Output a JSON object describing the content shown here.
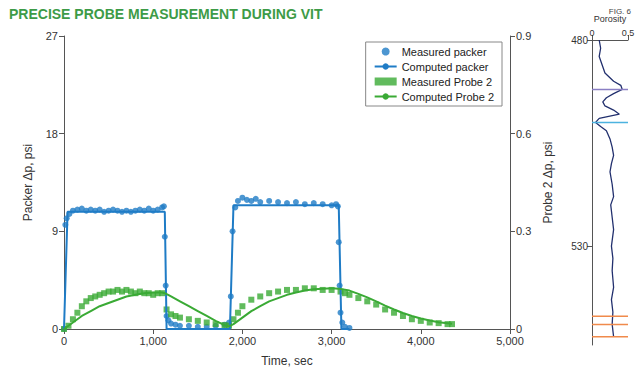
{
  "chart_data": [
    {
      "type": "line",
      "title": "PRECISE PROBE MEASUREMENT DURING VIT",
      "subtitle": "FIG. 6",
      "xlabel": "Time, sec",
      "ylabel": "Packer Δp, psi",
      "y2label": "Probe 2 Δp, psi",
      "xlim": [
        0,
        5000
      ],
      "xticks": [
        0,
        {
          "value": 1000,
          "label": "1,000"
        },
        {
          "value": 2000,
          "label": "2,000"
        },
        {
          "value": 3000,
          "label": "3,000"
        },
        {
          "value": 4000,
          "label": "4,000"
        },
        {
          "value": 5000,
          "label": "5,000"
        }
      ],
      "ylim": [
        0,
        27
      ],
      "yticks": [
        0,
        9,
        18,
        27
      ],
      "y2lim": [
        0,
        0.9
      ],
      "y2ticks": [
        0,
        0.3,
        0.6,
        0.9
      ],
      "grid": false,
      "legend": "upper right",
      "series": [
        {
          "name": "Measured packer",
          "type": "scatter",
          "marker": "circle",
          "color": "#1f7cc6",
          "x": [
            0,
            15,
            30,
            60,
            100,
            150,
            200,
            250,
            300,
            350,
            400,
            450,
            500,
            550,
            600,
            650,
            700,
            750,
            800,
            850,
            900,
            950,
            1000,
            1050,
            1100,
            1120,
            1130,
            1140,
            1150,
            1170,
            1200,
            1250,
            1300,
            1400,
            1500,
            1600,
            1700,
            1800,
            1850,
            1870,
            1890,
            1920,
            1950,
            2000,
            2050,
            2100,
            2150,
            2200,
            2300,
            2400,
            2500,
            2600,
            2700,
            2800,
            2900,
            3000,
            3050,
            3070,
            3080,
            3090,
            3100,
            3120,
            3150,
            3200
          ],
          "values": [
            0,
            9.6,
            10.2,
            10.6,
            10.9,
            11.0,
            11.1,
            10.9,
            11.0,
            10.9,
            11.0,
            10.8,
            10.9,
            11.0,
            10.9,
            10.8,
            10.9,
            10.8,
            10.9,
            11.0,
            10.9,
            11.1,
            10.9,
            11.0,
            11.2,
            11.3,
            8.5,
            4.0,
            1.2,
            0.8,
            0.5,
            0.4,
            0.3,
            0.3,
            0.2,
            0.2,
            0.3,
            0.4,
            0.6,
            3.0,
            9.0,
            11.2,
            11.8,
            12.1,
            11.9,
            11.8,
            12.0,
            11.7,
            11.8,
            11.7,
            11.6,
            11.7,
            11.5,
            11.6,
            11.5,
            11.4,
            11.5,
            11.3,
            8.0,
            4.0,
            1.5,
            0.6,
            0.2,
            0.1
          ]
        },
        {
          "name": "Computed packer",
          "type": "line",
          "line_style": "solid",
          "color": "#1f7cc6",
          "x": [
            0,
            40,
            1130,
            1150,
            1860,
            1900,
            3080,
            3110,
            3200
          ],
          "values": [
            0,
            10.8,
            10.8,
            0,
            0,
            11.4,
            11.4,
            0,
            0
          ]
        },
        {
          "name": "Measured Probe 2",
          "type": "scatter",
          "marker": "square",
          "color": "#3aaa35",
          "axis": "y2",
          "x": [
            0,
            50,
            100,
            150,
            200,
            250,
            300,
            350,
            400,
            450,
            500,
            550,
            600,
            650,
            700,
            750,
            800,
            850,
            900,
            950,
            1000,
            1050,
            1100,
            1150,
            1200,
            1250,
            1300,
            1400,
            1500,
            1600,
            1700,
            1800,
            1850,
            1900,
            1950,
            2000,
            2100,
            2200,
            2300,
            2400,
            2500,
            2600,
            2700,
            2800,
            2900,
            3000,
            3100,
            3150,
            3200,
            3300,
            3400,
            3500,
            3600,
            3700,
            3800,
            3900,
            4000,
            4100,
            4200,
            4300,
            4350
          ],
          "values": [
            0,
            0.01,
            0.03,
            0.05,
            0.07,
            0.085,
            0.095,
            0.1,
            0.105,
            0.11,
            0.115,
            0.115,
            0.12,
            0.115,
            0.12,
            0.115,
            0.11,
            0.115,
            0.11,
            0.11,
            0.105,
            0.11,
            0.11,
            0.06,
            0.045,
            0.04,
            0.035,
            0.03,
            0.025,
            0.02,
            0.015,
            0.012,
            0.01,
            0.03,
            0.05,
            0.07,
            0.09,
            0.1,
            0.11,
            0.115,
            0.12,
            0.12,
            0.125,
            0.125,
            0.12,
            0.12,
            0.115,
            0.11,
            0.105,
            0.095,
            0.085,
            0.075,
            0.06,
            0.05,
            0.04,
            0.03,
            0.025,
            0.02,
            0.018,
            0.015,
            0.015
          ]
        },
        {
          "name": "Computed Probe 2",
          "type": "line",
          "line_style": "solid",
          "color": "#3aaa35",
          "axis": "y2",
          "x": [
            0,
            100,
            200,
            300,
            400,
            500,
            600,
            700,
            800,
            900,
            1000,
            1100,
            1130,
            1200,
            1300,
            1400,
            1500,
            1600,
            1700,
            1800,
            1850,
            1900,
            2000,
            2100,
            2200,
            2300,
            2400,
            2500,
            2600,
            2700,
            2800,
            2900,
            3000,
            3080,
            3200,
            3300,
            3400,
            3500,
            3600,
            3700,
            3800,
            3900,
            4000,
            4100,
            4200,
            4350
          ],
          "values": [
            0,
            0.02,
            0.04,
            0.055,
            0.07,
            0.08,
            0.09,
            0.1,
            0.105,
            0.11,
            0.112,
            0.112,
            0.11,
            0.1,
            0.085,
            0.07,
            0.055,
            0.04,
            0.025,
            0.012,
            0.008,
            0.015,
            0.035,
            0.055,
            0.07,
            0.085,
            0.095,
            0.105,
            0.112,
            0.118,
            0.122,
            0.124,
            0.125,
            0.124,
            0.118,
            0.108,
            0.097,
            0.085,
            0.072,
            0.06,
            0.049,
            0.04,
            0.032,
            0.026,
            0.021,
            0.016
          ]
        }
      ]
    },
    {
      "type": "line",
      "xlabel": "Porosity",
      "xlim": [
        0,
        0.5
      ],
      "xticks": [
        0,
        0.5
      ],
      "ylim": [
        554,
        480
      ],
      "yticks": [
        480,
        530
      ],
      "grid": false,
      "series": [
        {
          "type": "line",
          "line_style": "solid",
          "color": "#22306e",
          "x": [
            0.1,
            0.12,
            0.1,
            0.14,
            0.18,
            0.3,
            0.4,
            0.42,
            0.3,
            0.2,
            0.15,
            0.18,
            0.3,
            0.38,
            0.1,
            0.05,
            0.12,
            0.2,
            0.25,
            0.28,
            0.3,
            0.27,
            0.25,
            0.28,
            0.3,
            0.26,
            0.28,
            0.3,
            0.27,
            0.29,
            0.28,
            0.3,
            0.27,
            0.29,
            0.28,
            0.3
          ],
          "values": [
            480,
            482,
            484,
            486,
            488,
            490,
            491,
            492,
            493,
            494,
            495,
            496,
            497,
            498,
            499,
            500,
            501,
            502,
            504,
            506,
            508,
            510,
            512,
            515,
            518,
            520,
            523,
            526,
            530,
            533,
            536,
            540,
            543,
            546,
            549,
            552
          ]
        },
        {
          "type": "hline",
          "color": "#8a7fc4",
          "values": [
            492
          ]
        },
        {
          "type": "hline",
          "color": "#4db3e0",
          "values": [
            500
          ]
        },
        {
          "type": "hline",
          "color": "#f08a4b",
          "values": [
            547,
            549,
            552
          ]
        }
      ]
    }
  ]
}
